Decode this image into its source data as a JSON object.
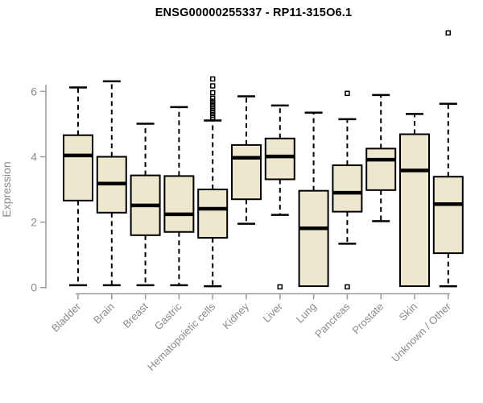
{
  "chart_data": {
    "type": "boxplot",
    "title": "ENSG00000255337 - RP11-315O6.1",
    "ylabel": "Expression",
    "xlabel": "",
    "yticks": [
      0,
      2,
      4,
      6
    ],
    "ylim": [
      0,
      6.2
    ],
    "grid": false,
    "legend": null,
    "categories": [
      "Bladder",
      "Brain",
      "Breast",
      "Gastric",
      "Hematopoietic cells",
      "Kidney",
      "Liver",
      "Lung",
      "Pancreas",
      "Prostate",
      "Skin",
      "Unknown / Other"
    ],
    "boxes": [
      {
        "category": "Bladder",
        "whisker_low": 0.07,
        "q1": 2.66,
        "median": 4.04,
        "q3": 4.66,
        "whisker_high": 6.12,
        "outliers": []
      },
      {
        "category": "Brain",
        "whisker_low": 0.07,
        "q1": 2.29,
        "median": 3.18,
        "q3": 4.0,
        "whisker_high": 6.31,
        "outliers": []
      },
      {
        "category": "Breast",
        "whisker_low": 0.07,
        "q1": 1.6,
        "median": 2.51,
        "q3": 3.43,
        "whisker_high": 5.01,
        "outliers": []
      },
      {
        "category": "Gastric",
        "whisker_low": 0.07,
        "q1": 1.7,
        "median": 2.24,
        "q3": 3.41,
        "whisker_high": 5.52,
        "outliers": []
      },
      {
        "category": "Hematopoietic cells",
        "whisker_low": 0.04,
        "q1": 1.52,
        "median": 2.41,
        "q3": 3.0,
        "whisker_high": 5.11,
        "outliers": [
          5.2,
          5.27,
          5.34,
          5.41,
          5.48,
          5.55,
          5.62,
          5.7,
          5.79,
          5.96,
          6.17,
          6.38
        ]
      },
      {
        "category": "Kidney",
        "whisker_low": 1.95,
        "q1": 2.7,
        "median": 3.97,
        "q3": 4.36,
        "whisker_high": 5.85,
        "outliers": []
      },
      {
        "category": "Liver",
        "whisker_low": 2.22,
        "q1": 3.31,
        "median": 4.01,
        "q3": 4.56,
        "whisker_high": 5.57,
        "outliers": [
          0.02
        ]
      },
      {
        "category": "Lung",
        "whisker_low": null,
        "q1": 0.04,
        "median": 1.81,
        "q3": 2.96,
        "whisker_high": 5.35,
        "outliers": []
      },
      {
        "category": "Pancreas",
        "whisker_low": 1.34,
        "q1": 2.32,
        "median": 2.9,
        "q3": 3.74,
        "whisker_high": 5.15,
        "outliers": [
          5.94,
          0.02
        ]
      },
      {
        "category": "Prostate",
        "whisker_low": 2.03,
        "q1": 2.98,
        "median": 3.91,
        "q3": 4.25,
        "whisker_high": 5.89,
        "outliers": []
      },
      {
        "category": "Skin",
        "whisker_low": null,
        "q1": 0.04,
        "median": 3.58,
        "q3": 4.69,
        "whisker_high": 5.31,
        "outliers": []
      },
      {
        "category": "Unknown / Other",
        "whisker_low": 0.04,
        "q1": 1.05,
        "median": 2.55,
        "q3": 3.39,
        "whisker_high": 5.62,
        "outliers": [
          7.79
        ]
      }
    ],
    "colors": {
      "box_fill": "#EDE8CD",
      "box_stroke": "#000000",
      "median": "#000000",
      "whisker": "#000000",
      "outlier_stroke": "#000000",
      "axis": "#999999",
      "tick_label": "#8a8a8a",
      "title": "#000000",
      "background": "#ffffff"
    }
  }
}
